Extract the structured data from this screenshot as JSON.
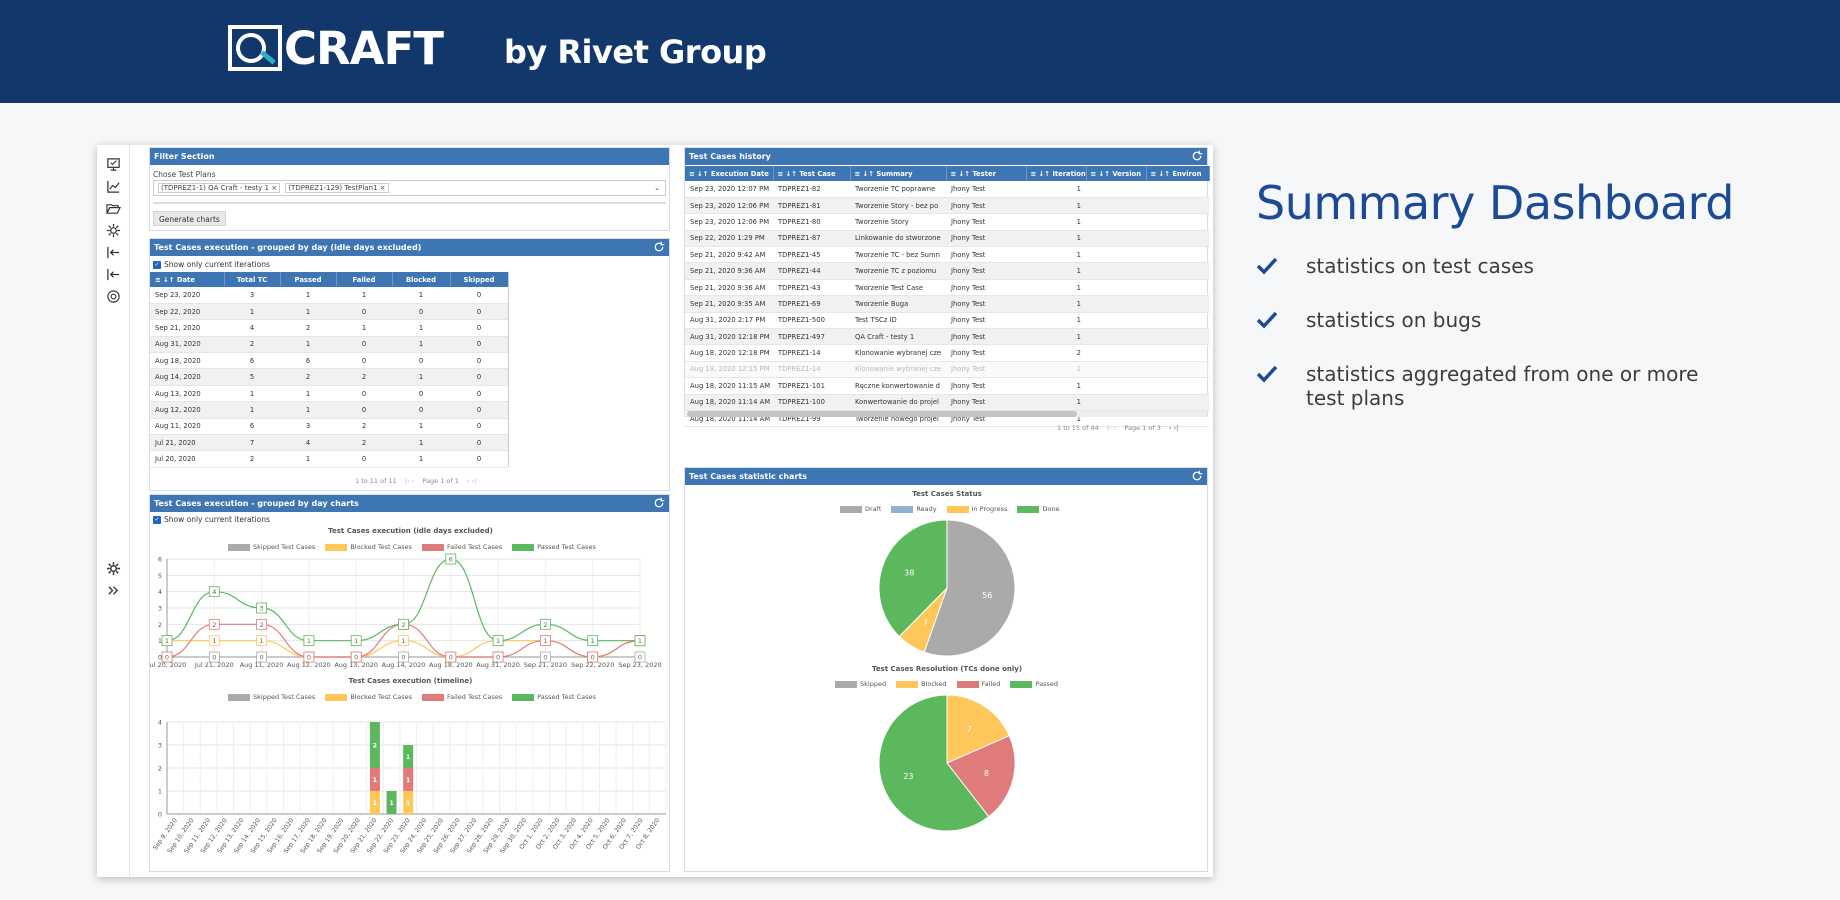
{
  "banner": {
    "logo_text": "CRAFT",
    "logo_mark": "QA",
    "byline": "by Rivet Group"
  },
  "promo": {
    "title": "Summary Dashboard",
    "bullets": [
      "statistics on test cases",
      "statistics on bugs",
      "statistics aggregated from one or more test plans"
    ]
  },
  "filter": {
    "header": "Filter Section",
    "label": "Chose Test Plans",
    "chips": [
      "(TDPREZ1-1) QA Craft - testy 1 ×",
      "(TDPREZ1-129) TestPlan1 ×"
    ],
    "button": "Generate charts"
  },
  "daily_table": {
    "header": "Test Cases execution - grouped by day (idle days excluded)",
    "checkbox": "Show only current iterations",
    "columns": [
      "≡ ↓↑ Date",
      "Total TC",
      "Passed",
      "Failed",
      "Blocked",
      "Skipped"
    ],
    "rows": [
      [
        "Sep 23, 2020",
        "3",
        "1",
        "1",
        "1",
        "0"
      ],
      [
        "Sep 22, 2020",
        "1",
        "1",
        "0",
        "0",
        "0"
      ],
      [
        "Sep 21, 2020",
        "4",
        "2",
        "1",
        "1",
        "0"
      ],
      [
        "Aug 31, 2020",
        "2",
        "1",
        "0",
        "1",
        "0"
      ],
      [
        "Aug 18, 2020",
        "6",
        "6",
        "0",
        "0",
        "0"
      ],
      [
        "Aug 14, 2020",
        "5",
        "2",
        "2",
        "1",
        "0"
      ],
      [
        "Aug 13, 2020",
        "1",
        "1",
        "0",
        "0",
        "0"
      ],
      [
        "Aug 12, 2020",
        "1",
        "1",
        "0",
        "0",
        "0"
      ],
      [
        "Aug 11, 2020",
        "6",
        "3",
        "2",
        "1",
        "0"
      ],
      [
        "Jul 21, 2020",
        "7",
        "4",
        "2",
        "1",
        "0"
      ],
      [
        "Jul 20, 2020",
        "2",
        "1",
        "0",
        "1",
        "0"
      ]
    ],
    "pager_count": "1 to 11 of 11",
    "pager_page": "Page 1 of 1"
  },
  "daily_charts": {
    "header": "Test Cases execution - grouped by day charts",
    "checkbox": "Show only current iterations"
  },
  "history": {
    "header": "Test Cases history",
    "columns": [
      "≡ ↓↑ Execution Date",
      "≡ ↓↑ Test Case",
      "≡ ↓↑ Summary",
      "≡ ↓↑ Tester",
      "≡ ↓↑ Iteration",
      "≡ ↓↑ Version",
      "≡ ↓↑ Environ"
    ],
    "rows": [
      [
        "Sep 23, 2020 12:07 PM",
        "TDPREZ1-82",
        "Tworzenie TC poprawne",
        "Jhony Test",
        "1"
      ],
      [
        "Sep 23, 2020 12:06 PM",
        "TDPREZ1-81",
        "Tworzenie Story - bez po",
        "Jhony Test",
        "1"
      ],
      [
        "Sep 23, 2020 12:06 PM",
        "TDPREZ1-80",
        "Tworzenie Story",
        "Jhony Test",
        "1"
      ],
      [
        "Sep 22, 2020 1:29 PM",
        "TDPREZ1-87",
        "Linkowanie do stworzone",
        "Jhony Test",
        "1"
      ],
      [
        "Sep 21, 2020 9:42 AM",
        "TDPREZ1-45",
        "Tworzenie TC - bez Sumn",
        "Jhony Test",
        "1"
      ],
      [
        "Sep 21, 2020 9:36 AM",
        "TDPREZ1-44",
        "Tworzenie TC z poziomu",
        "Jhony Test",
        "1"
      ],
      [
        "Sep 21, 2020 9:36 AM",
        "TDPREZ1-43",
        "Tworzenie Test Case",
        "Jhony Test",
        "1"
      ],
      [
        "Sep 21, 2020 9:35 AM",
        "TDPREZ1-69",
        "Tworzenie Buga",
        "Jhony Test",
        "1"
      ],
      [
        "Aug 31, 2020 2:17 PM",
        "TDPREZ1-500",
        "Test TSCz ID",
        "Jhony Test",
        "1"
      ],
      [
        "Aug 31, 2020 12:18 PM",
        "TDPREZ1-497",
        "QA Craft - testy 1",
        "Jhony Test",
        "1"
      ],
      [
        "Aug 18, 2020 12:18 PM",
        "TDPREZ1-14",
        "Klonowanie wybranej cze",
        "Jhony Test",
        "2"
      ],
      [
        "Aug 18, 2020 12:15 PM",
        "TDPREZ1-14",
        "Klonowanie wybranej cze",
        "Jhony Test",
        "1"
      ],
      [
        "Aug 18, 2020 11:15 AM",
        "TDPREZ1-101",
        "Ręczne konwertowanie d",
        "Jhony Test",
        "1"
      ],
      [
        "Aug 18, 2020 11:14 AM",
        "TDPREZ1-100",
        "Konwertowanie do projel",
        "Jhony Test",
        "1"
      ],
      [
        "Aug 18, 2020 11:14 AM",
        "TDPREZ1-99",
        "Tworzenie nowego projel",
        "Jhony Test",
        "1"
      ]
    ],
    "pager_count": "1 to 15 of 44",
    "pager_page": "Page 1 of 3"
  },
  "stat_charts": {
    "header": "Test Cases statistic charts"
  },
  "colors": {
    "skipped": "#aaaaaa",
    "blocked": "#ffc75a",
    "failed": "#e07b7b",
    "passed": "#5cb85c",
    "ready": "#8fb0d0",
    "header": "#3e76b3",
    "banner": "#12376b"
  },
  "chart_data": [
    {
      "type": "line",
      "title": "Test Cases execution (idle days excluded)",
      "categories": [
        "Jul 20, 2020",
        "Jul 21, 2020",
        "Aug 11, 2020",
        "Aug 12, 2020",
        "Aug 13, 2020",
        "Aug 14, 2020",
        "Aug 18, 2020",
        "Aug 31, 2020",
        "Sep 21, 2020",
        "Sep 22, 2020",
        "Sep 23, 2020"
      ],
      "ylim": [
        0,
        6
      ],
      "yticks": [
        "0",
        "1",
        "2",
        "3",
        "4",
        "5",
        "6"
      ],
      "series": [
        {
          "name": "Skipped Test Cases",
          "values": [
            0,
            0,
            0,
            0,
            0,
            0,
            0,
            0,
            0,
            0,
            0
          ]
        },
        {
          "name": "Blocked Test Cases",
          "values": [
            1,
            1,
            1,
            0,
            0,
            1,
            0,
            1,
            1,
            0,
            1
          ]
        },
        {
          "name": "Failed Test Cases",
          "values": [
            0,
            2,
            2,
            0,
            0,
            2,
            0,
            0,
            1,
            0,
            1
          ]
        },
        {
          "name": "Passed Test Cases",
          "values": [
            1,
            4,
            3,
            1,
            1,
            2,
            6,
            1,
            2,
            1,
            1
          ]
        }
      ],
      "legend": "top"
    },
    {
      "type": "bar",
      "title": "Test Cases execution (timeline)",
      "categories": [
        "Sep 9, 2020",
        "Sep 10, 2020",
        "Sep 11, 2020",
        "Sep 12, 2020",
        "Sep 13, 2020",
        "Sep 14, 2020",
        "Sep 15, 2020",
        "Sep 16, 2020",
        "Sep 17, 2020",
        "Sep 18, 2020",
        "Sep 19, 2020",
        "Sep 20, 2020",
        "Sep 21, 2020",
        "Sep 22, 2020",
        "Sep 23, 2020",
        "Sep 24, 2020",
        "Sep 25, 2020",
        "Sep 26, 2020",
        "Sep 27, 2020",
        "Sep 28, 2020",
        "Sep 29, 2020",
        "Sep 30, 2020",
        "Oct 1, 2020",
        "Oct 2, 2020",
        "Oct 3, 2020",
        "Oct 4, 2020",
        "Oct 5, 2020",
        "Oct 6, 2020",
        "Oct 7, 2020",
        "Oct 8, 2020"
      ],
      "ylim": [
        0,
        4
      ],
      "yticks": [
        "0",
        "1",
        "2",
        "3",
        "4"
      ],
      "series": [
        {
          "name": "Skipped Test Cases",
          "values": [
            0,
            0,
            0,
            0,
            0,
            0,
            0,
            0,
            0,
            0,
            0,
            0,
            0,
            0,
            0,
            0,
            0,
            0,
            0,
            0,
            0,
            0,
            0,
            0,
            0,
            0,
            0,
            0,
            0,
            0
          ]
        },
        {
          "name": "Blocked Test Cases",
          "values": [
            0,
            0,
            0,
            0,
            0,
            0,
            0,
            0,
            0,
            0,
            0,
            0,
            1,
            0,
            1,
            0,
            0,
            0,
            0,
            0,
            0,
            0,
            0,
            0,
            0,
            0,
            0,
            0,
            0,
            0
          ]
        },
        {
          "name": "Failed Test Cases",
          "values": [
            0,
            0,
            0,
            0,
            0,
            0,
            0,
            0,
            0,
            0,
            0,
            0,
            1,
            0,
            1,
            0,
            0,
            0,
            0,
            0,
            0,
            0,
            0,
            0,
            0,
            0,
            0,
            0,
            0,
            0
          ]
        },
        {
          "name": "Passed Test Cases",
          "values": [
            0,
            0,
            0,
            0,
            0,
            0,
            0,
            0,
            0,
            0,
            0,
            0,
            2,
            1,
            1,
            0,
            0,
            0,
            0,
            0,
            0,
            0,
            0,
            0,
            0,
            0,
            0,
            0,
            0,
            0
          ]
        }
      ],
      "stacked": true,
      "legend": "top"
    },
    {
      "type": "pie",
      "title": "Test Cases Status",
      "categories": [
        "Draft",
        "Ready",
        "In Progress",
        "Done"
      ],
      "values": [
        56,
        0,
        7,
        38
      ],
      "legend": "top"
    },
    {
      "type": "pie",
      "title": "Test Cases Resolution (TCs done only)",
      "categories": [
        "Skipped",
        "Blocked",
        "Failed",
        "Passed"
      ],
      "values": [
        0,
        7,
        8,
        23
      ],
      "legend": "top"
    }
  ]
}
